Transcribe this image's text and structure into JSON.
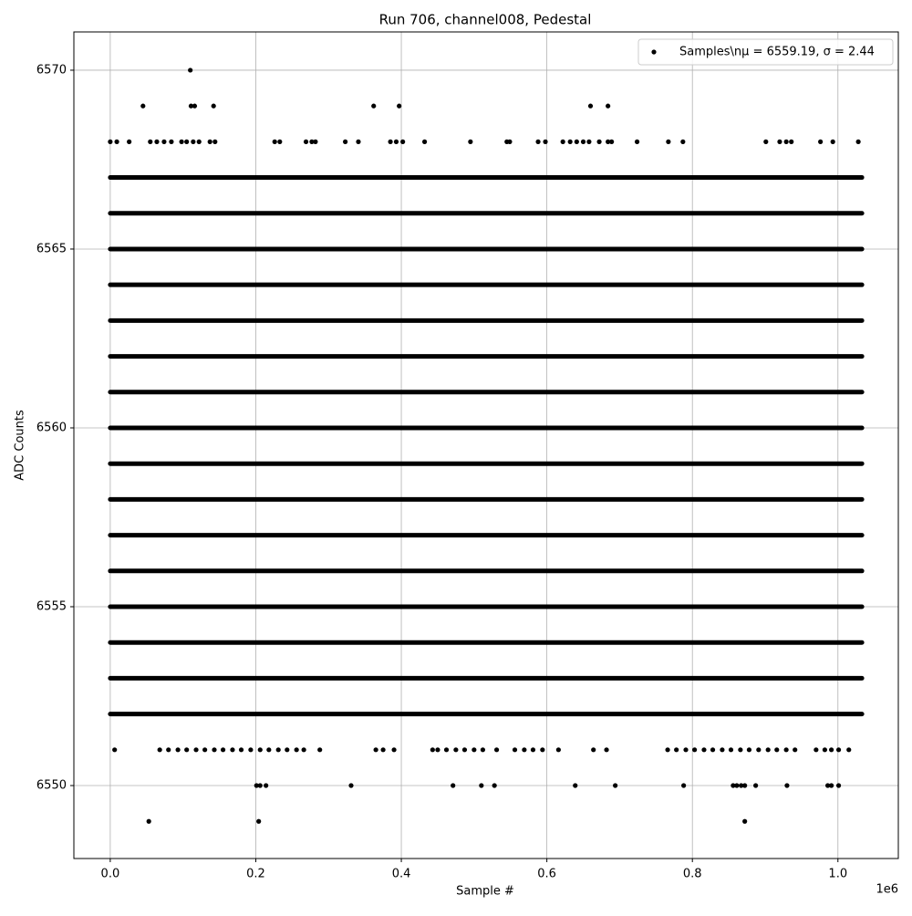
{
  "chart_data": {
    "type": "scatter",
    "title": "Run 706, channel008, Pedestal",
    "xlabel": "Sample #",
    "ylabel": "ADC Counts",
    "x_offset_label": "1e6",
    "xlim": [
      -50000,
      1083000
    ],
    "ylim": [
      6547.96,
      6571.07
    ],
    "xticks": [
      {
        "value": 0,
        "label": "0.0"
      },
      {
        "value": 200000,
        "label": "0.2"
      },
      {
        "value": 400000,
        "label": "0.4"
      },
      {
        "value": 600000,
        "label": "0.6"
      },
      {
        "value": 800000,
        "label": "0.8"
      },
      {
        "value": 1000000,
        "label": "1.0"
      }
    ],
    "yticks": [
      6550,
      6555,
      6560,
      6565,
      6570
    ],
    "grid": true,
    "legend": "upper right",
    "series": [
      {
        "name": "Samples\\nμ = 6559.19, σ = 2.44",
        "color": "#000000",
        "x": [
          110000,
          45000,
          111000,
          116000,
          142000,
          362000,
          397000,
          660000,
          684000,
          53000,
          204000,
          872000,
          201000,
          206000,
          214000,
          331000,
          471000,
          510000,
          528000,
          639000,
          694000,
          788000,
          856000,
          861000,
          867000,
          872000,
          887000,
          930000,
          986000,
          991000,
          1001000,
          6000,
          68000,
          80000,
          93000,
          105000,
          118000,
          130000,
          143000,
          155000,
          168000,
          180000,
          193000,
          206000,
          218000,
          231000,
          243000,
          256000,
          266000,
          288000,
          365000,
          375000,
          390000,
          443000,
          450000,
          462000,
          475000,
          487000,
          500000,
          512000,
          531000,
          556000,
          569000,
          581000,
          594000,
          616000,
          664000,
          682000,
          766000,
          778000,
          791000,
          803000,
          816000,
          828000,
          841000,
          853000,
          866000,
          878000,
          891000,
          904000,
          916000,
          929000,
          941000,
          970000,
          982000,
          991000,
          1001000,
          1015000,
          0,
          9000,
          26000,
          55000,
          64000,
          74000,
          84000,
          98000,
          105000,
          114000,
          122000,
          137000,
          144000,
          226000,
          233000,
          269000,
          277000,
          282000,
          323000,
          341000,
          385000,
          393000,
          402000,
          432000,
          495000,
          545000,
          549000,
          588000,
          598000,
          622000,
          632000,
          641000,
          650000,
          658000,
          672000,
          684000,
          689000,
          724000,
          767000,
          787000,
          901000,
          920000,
          929000,
          936000,
          976000,
          993000,
          1028000
        ],
        "values": [
          6570,
          6569,
          6569,
          6569,
          6569,
          6569,
          6569,
          6569,
          6569,
          6549,
          6549,
          6549,
          6550,
          6550,
          6550,
          6550,
          6550,
          6550,
          6550,
          6550,
          6550,
          6550,
          6550,
          6550,
          6550,
          6550,
          6550,
          6550,
          6550,
          6550,
          6550,
          6551,
          6551,
          6551,
          6551,
          6551,
          6551,
          6551,
          6551,
          6551,
          6551,
          6551,
          6551,
          6551,
          6551,
          6551,
          6551,
          6551,
          6551,
          6551,
          6551,
          6551,
          6551,
          6551,
          6551,
          6551,
          6551,
          6551,
          6551,
          6551,
          6551,
          6551,
          6551,
          6551,
          6551,
          6551,
          6551,
          6551,
          6551,
          6551,
          6551,
          6551,
          6551,
          6551,
          6551,
          6551,
          6551,
          6551,
          6551,
          6551,
          6551,
          6551,
          6551,
          6551,
          6551,
          6551,
          6551,
          6551,
          6568,
          6568,
          6568,
          6568,
          6568,
          6568,
          6568,
          6568,
          6568,
          6568,
          6568,
          6568,
          6568,
          6568,
          6568,
          6568,
          6568,
          6568,
          6568,
          6568,
          6568,
          6568,
          6568,
          6568,
          6568,
          6568,
          6568,
          6568,
          6568,
          6568,
          6568,
          6568,
          6568,
          6568,
          6568,
          6568,
          6568,
          6568,
          6568,
          6568,
          6568,
          6568,
          6568,
          6568,
          6568,
          6568,
          6568
        ]
      }
    ],
    "dense_levels": {
      "values": [
        6552,
        6553,
        6554,
        6555,
        6556,
        6557,
        6558,
        6559,
        6560,
        6561,
        6562,
        6563,
        6564,
        6565,
        6566,
        6567
      ],
      "x_range": [
        0,
        1033000
      ]
    }
  }
}
